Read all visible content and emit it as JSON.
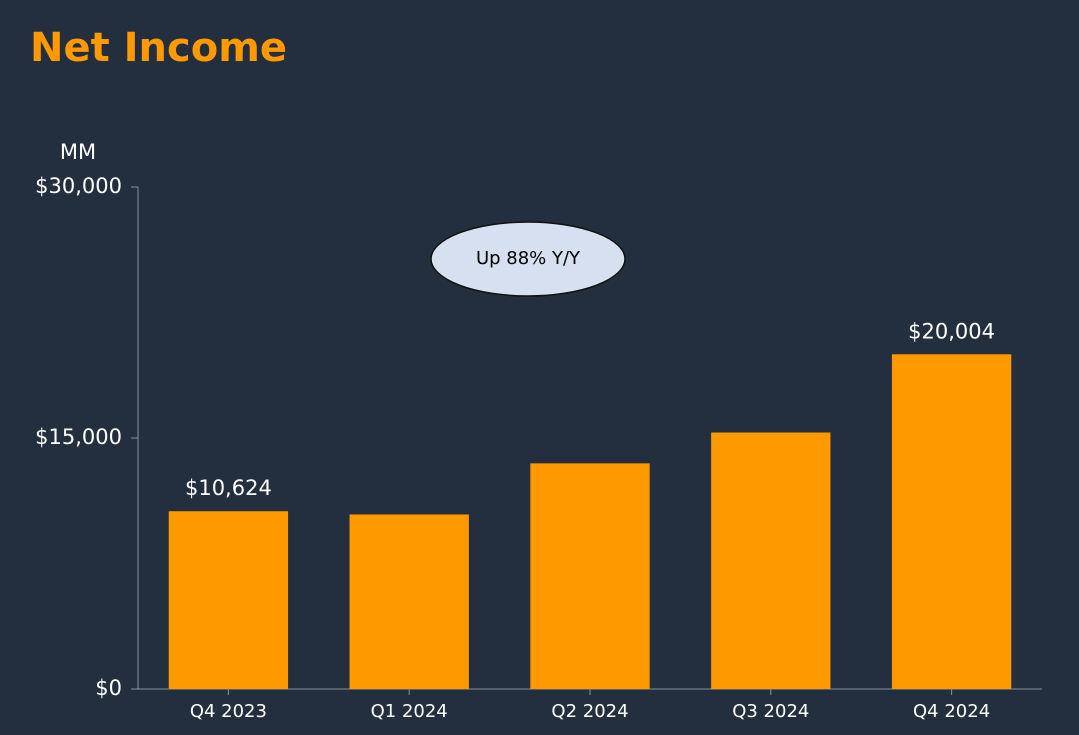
{
  "chart_data": {
    "type": "bar",
    "title": "Net Income",
    "unit_label": "MM",
    "annotation": "Up 88% Y/Y",
    "categories": [
      "Q4 2023",
      "Q1 2024",
      "Q2 2024",
      "Q3 2024",
      "Q4 2024"
    ],
    "values": [
      10624,
      10431,
      13485,
      15328,
      20004
    ],
    "value_labels": [
      "$10,624",
      null,
      null,
      null,
      "$20,004"
    ],
    "color": "#ff9900",
    "ylim": [
      0,
      30000
    ],
    "yticks": [
      {
        "value": 0,
        "label": "$0"
      },
      {
        "value": 15000,
        "label": "$15,000"
      },
      {
        "value": 30000,
        "label": "$30,000"
      }
    ]
  }
}
